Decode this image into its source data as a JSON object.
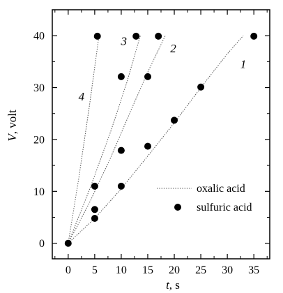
{
  "chart_data": {
    "type": "scatter",
    "title": "",
    "xlabel": {
      "var": "t",
      "unit": ", s"
    },
    "ylabel": {
      "var": "V",
      "unit": ", volt"
    },
    "xlim": [
      -3,
      38
    ],
    "ylim": [
      -3,
      45
    ],
    "xticks": [
      0,
      5,
      10,
      15,
      20,
      25,
      30,
      35
    ],
    "yticks": [
      0,
      10,
      20,
      30,
      40
    ],
    "grid": false,
    "legend": {
      "placement": "bottom-right",
      "oxalic_label": "oxalic acid",
      "sulfuric_label": "sulfuric acid"
    },
    "curves": [
      {
        "label": "1",
        "x": [
          0,
          5,
          10,
          15,
          20,
          25,
          30,
          33
        ],
        "y": [
          0,
          4.8,
          10.5,
          16.8,
          23.2,
          30.0,
          36.5,
          40.0
        ]
      },
      {
        "label": "2",
        "x": [
          0,
          4,
          8,
          12,
          15,
          18.3
        ],
        "y": [
          0,
          7.8,
          16.5,
          26.0,
          33.0,
          40.0
        ]
      },
      {
        "label": "3",
        "x": [
          0,
          4,
          8,
          11,
          13.6
        ],
        "y": [
          0,
          10.3,
          21.5,
          30.8,
          40.0
        ]
      },
      {
        "label": "4",
        "x": [
          0,
          2,
          4,
          5.8
        ],
        "y": [
          0,
          12.5,
          26.5,
          40.0
        ]
      }
    ],
    "curve_label_positions": [
      {
        "label": "1",
        "x": 33,
        "y": 33.8
      },
      {
        "label": "2",
        "x": 19.8,
        "y": 36.8
      },
      {
        "label": "3",
        "x": 10.5,
        "y": 38.2
      },
      {
        "label": "4",
        "x": 2.5,
        "y": 27.5
      }
    ],
    "series": [
      {
        "name": "sulfuric acid",
        "points": [
          [
            0,
            0
          ],
          [
            5,
            4.8
          ],
          [
            5,
            6.5
          ],
          [
            5,
            11
          ],
          [
            10,
            11
          ],
          [
            15,
            18.7
          ],
          [
            20,
            23.7
          ],
          [
            25,
            30.1
          ],
          [
            10,
            17.9
          ],
          [
            10,
            32.1
          ],
          [
            15,
            32.1
          ],
          [
            5.5,
            39.9
          ],
          [
            12.8,
            39.9
          ],
          [
            17,
            39.9
          ],
          [
            35,
            39.9
          ]
        ]
      }
    ]
  },
  "colors": {
    "marker": "#000000",
    "axis": "#000000",
    "curve": "#000000"
  }
}
